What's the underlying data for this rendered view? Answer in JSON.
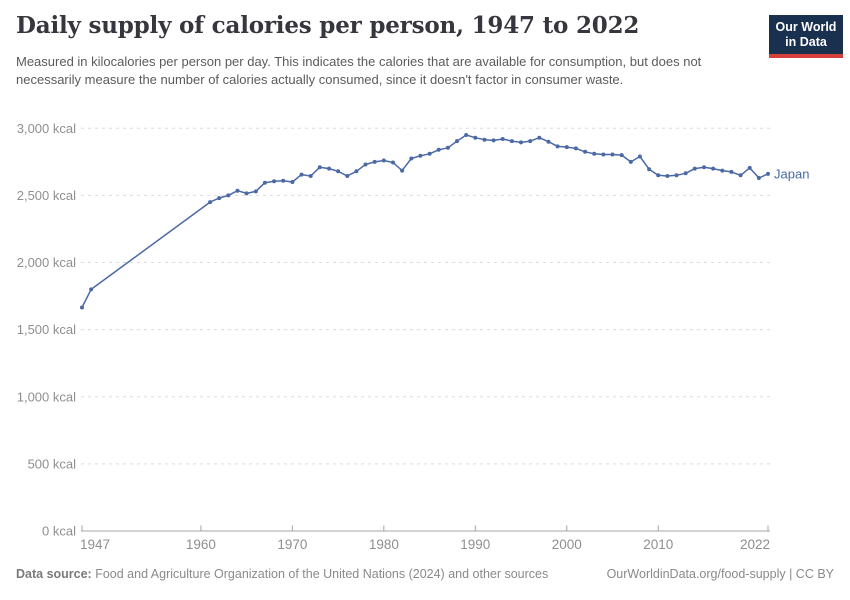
{
  "header": {
    "logo": {
      "line1": "Our World",
      "line2": "in Data"
    }
  },
  "chart_data": {
    "type": "line",
    "title": "Daily supply of calories per person, 1947 to 2022",
    "subtitle": "Measured in kilocalories per person per day. This indicates the calories that are available for consumption, but does not necessarily measure the number of calories actually consumed, since it doesn't factor in consumer waste.",
    "entity_label": "Japan",
    "unit": "kcal",
    "xlabel": "",
    "ylabel": "",
    "xlim": [
      1947,
      2022
    ],
    "ylim": [
      0,
      3000
    ],
    "grid": "horizontal-dashed",
    "legend_position": "end-of-line",
    "line_color": "#4b69a5",
    "note": "Gap in markers between 1948 and 1961 is connected by a straight interpolated segment",
    "points": [
      [
        1947,
        1665
      ],
      [
        1948,
        1800
      ],
      [
        1961,
        2450
      ],
      [
        1962,
        2480
      ],
      [
        1963,
        2500
      ],
      [
        1964,
        2535
      ],
      [
        1965,
        2515
      ],
      [
        1966,
        2530
      ],
      [
        1967,
        2595
      ],
      [
        1968,
        2605
      ],
      [
        1969,
        2610
      ],
      [
        1970,
        2600
      ],
      [
        1971,
        2655
      ],
      [
        1972,
        2645
      ],
      [
        1973,
        2710
      ],
      [
        1974,
        2700
      ],
      [
        1975,
        2680
      ],
      [
        1976,
        2645
      ],
      [
        1977,
        2680
      ],
      [
        1978,
        2730
      ],
      [
        1979,
        2750
      ],
      [
        1980,
        2760
      ],
      [
        1981,
        2745
      ],
      [
        1982,
        2685
      ],
      [
        1983,
        2775
      ],
      [
        1984,
        2795
      ],
      [
        1985,
        2810
      ],
      [
        1986,
        2840
      ],
      [
        1987,
        2855
      ],
      [
        1988,
        2905
      ],
      [
        1989,
        2950
      ],
      [
        1990,
        2930
      ],
      [
        1991,
        2915
      ],
      [
        1992,
        2910
      ],
      [
        1993,
        2920
      ],
      [
        1994,
        2905
      ],
      [
        1995,
        2895
      ],
      [
        1996,
        2905
      ],
      [
        1997,
        2930
      ],
      [
        1998,
        2900
      ],
      [
        1999,
        2865
      ],
      [
        2000,
        2860
      ],
      [
        2001,
        2850
      ],
      [
        2002,
        2825
      ],
      [
        2003,
        2810
      ],
      [
        2004,
        2805
      ],
      [
        2005,
        2805
      ],
      [
        2006,
        2800
      ],
      [
        2007,
        2750
      ],
      [
        2008,
        2790
      ],
      [
        2009,
        2695
      ],
      [
        2010,
        2650
      ],
      [
        2011,
        2645
      ],
      [
        2012,
        2650
      ],
      [
        2013,
        2665
      ],
      [
        2014,
        2700
      ],
      [
        2015,
        2710
      ],
      [
        2016,
        2700
      ],
      [
        2017,
        2685
      ],
      [
        2018,
        2675
      ],
      [
        2019,
        2650
      ],
      [
        2020,
        2705
      ],
      [
        2021,
        2630
      ],
      [
        2022,
        2660
      ]
    ],
    "xticks": [
      1947,
      1960,
      1970,
      1980,
      1990,
      2000,
      2010,
      2022
    ],
    "xtick_labels": [
      "1947",
      "1960",
      "1970",
      "1980",
      "1990",
      "2000",
      "2010",
      "2022"
    ],
    "yticks": [
      0,
      500,
      1000,
      1500,
      2000,
      2500,
      3000
    ],
    "ytick_labels": [
      "0 kcal",
      "500 kcal",
      "1,000 kcal",
      "1,500 kcal",
      "2,000 kcal",
      "2,500 kcal",
      "3,000 kcal"
    ]
  },
  "colors": {
    "line": "#4b69a5",
    "gridline": "#dcdcdc",
    "axis": "#a5a5a5",
    "tick_label": "#8f8f8f",
    "title": "#36363e",
    "subtitle": "#5b5b5b",
    "footer": "#8a8a8a",
    "logo_background": "#19304e",
    "logo_bar": "#d7403a"
  },
  "footer": {
    "datasource_label": "Data source:",
    "datasource_text": " Food and Agriculture Organization of the United Nations (2024) and other sources",
    "link": "OurWorldinData.org/food-supply | CC BY"
  }
}
